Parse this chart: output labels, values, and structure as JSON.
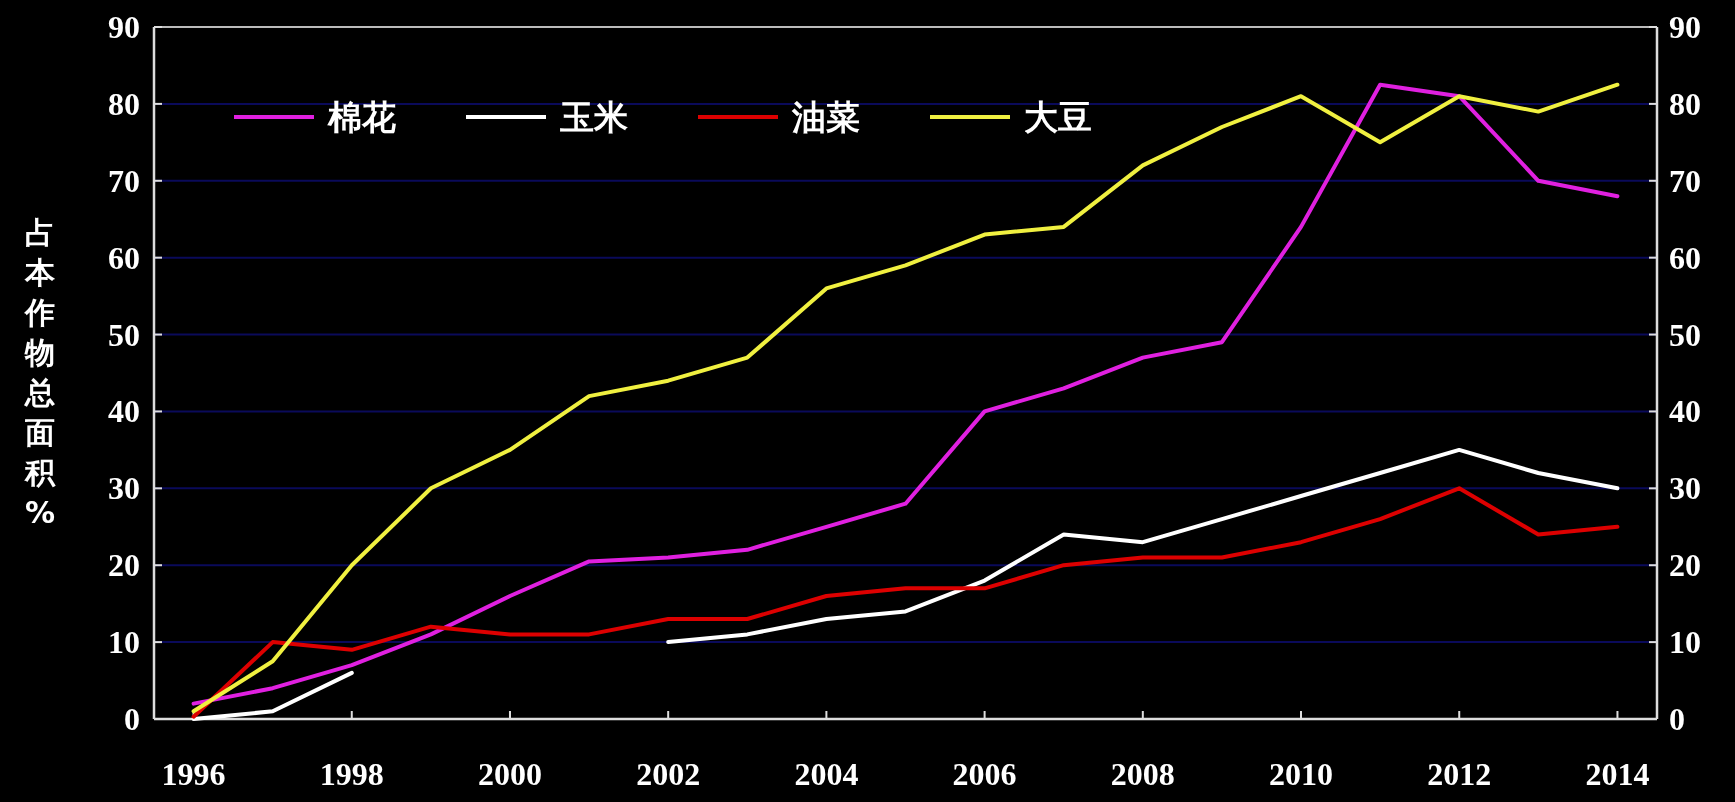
{
  "chart_data": {
    "type": "line",
    "ylabel": "占本作物总面积%",
    "x": [
      1996,
      1997,
      1998,
      1999,
      2000,
      2001,
      2002,
      2003,
      2004,
      2005,
      2006,
      2007,
      2008,
      2009,
      2010,
      2011,
      2012,
      2013,
      2014
    ],
    "series": [
      {
        "name": "棉花",
        "color": "#e020e0",
        "values": [
          2,
          4,
          7,
          11,
          16,
          20.5,
          21,
          22,
          25,
          28,
          40,
          43,
          47,
          49,
          64,
          82.5,
          81,
          70,
          68
        ]
      },
      {
        "name": "玉米",
        "color": "#ffffff",
        "values": [
          0,
          1,
          6,
          null,
          null,
          null,
          10,
          11,
          13,
          14,
          18,
          24,
          23,
          26,
          29,
          32,
          35,
          32,
          30
        ]
      },
      {
        "name": "油菜",
        "color": "#dd0000",
        "values": [
          0.3,
          10,
          9,
          12,
          11,
          11,
          13,
          13,
          16,
          17,
          17,
          20,
          21,
          21,
          23,
          26,
          30,
          24,
          25
        ]
      },
      {
        "name": "大豆",
        "color": "#f0f040",
        "values": [
          1,
          7.5,
          20,
          30,
          35,
          42,
          44,
          47,
          56,
          59,
          63,
          64,
          72,
          77,
          81,
          75,
          81,
          79,
          82.5
        ]
      }
    ],
    "xlim": [
      1995.5,
      2014.5
    ],
    "xticks": [
      1996,
      1998,
      2000,
      2002,
      2004,
      2006,
      2008,
      2010,
      2012,
      2014
    ],
    "ylim": [
      0,
      90
    ],
    "yticks": [
      0,
      10,
      20,
      30,
      40,
      50,
      60,
      70,
      80,
      90
    ],
    "y2lim": [
      0,
      90
    ],
    "y2ticks": [
      0,
      10,
      20,
      30,
      40,
      50,
      60,
      70,
      80,
      90
    ],
    "grid": "y",
    "legend": "top left",
    "marker": "none",
    "line_style": "solid"
  }
}
